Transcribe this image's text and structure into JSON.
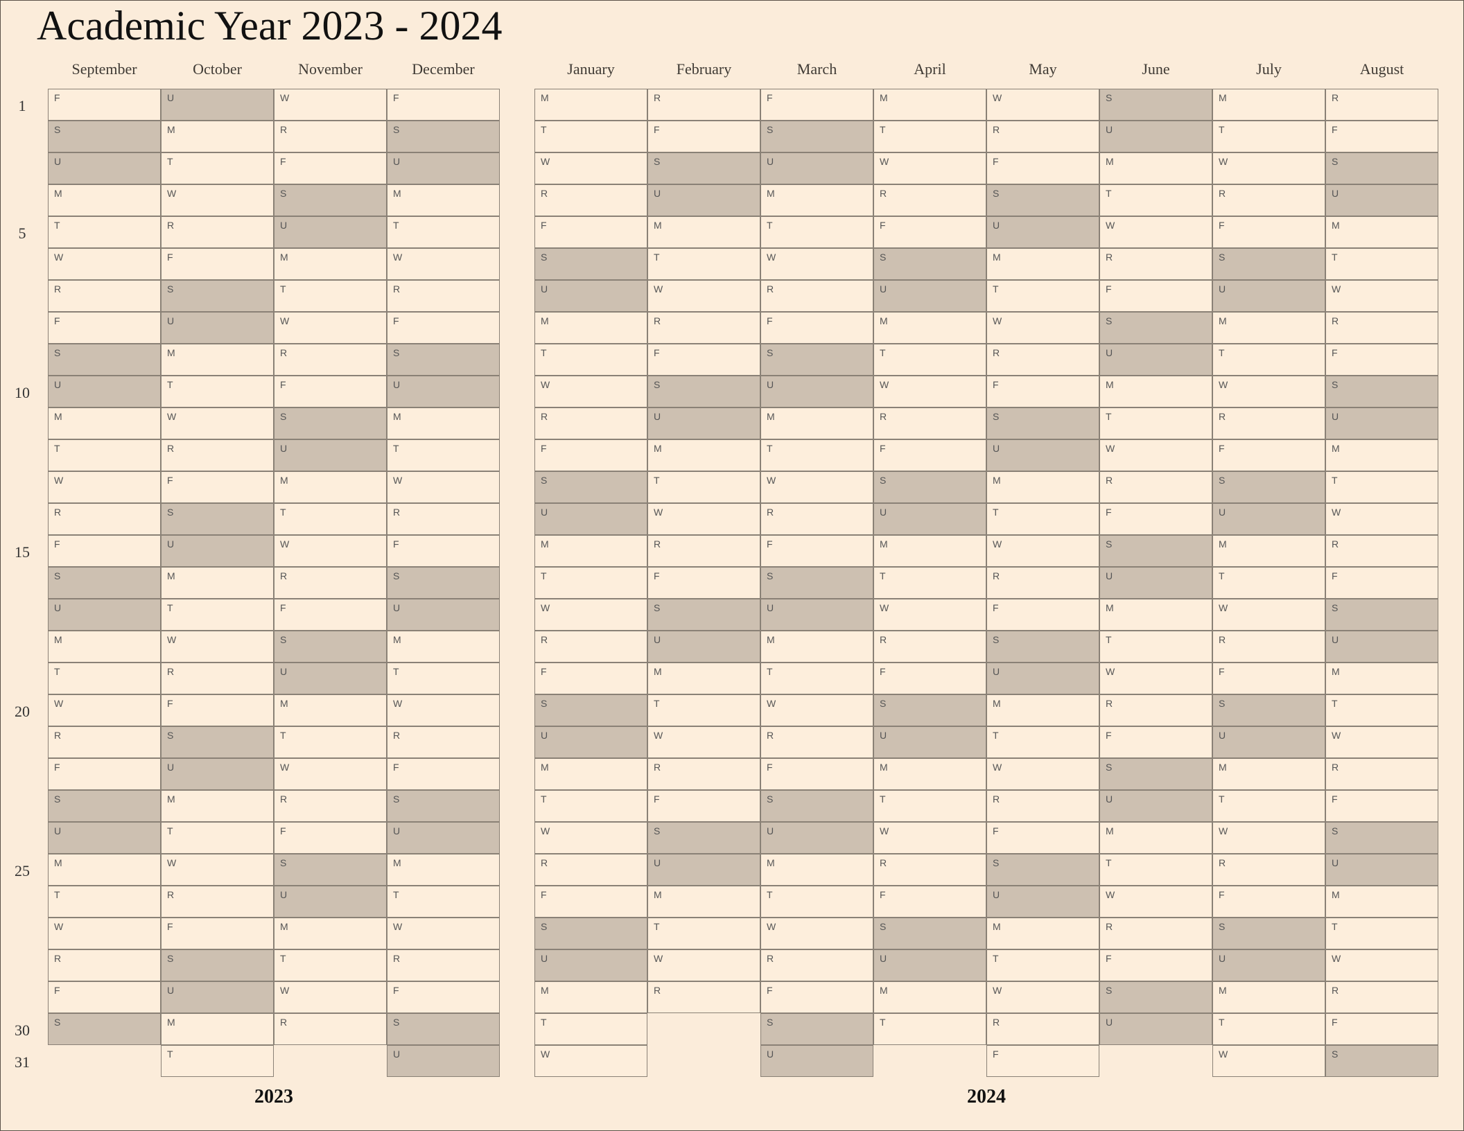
{
  "title": "Academic Year 2023 - 2024",
  "colors": {
    "background": "#fbecda",
    "weekday_cell": "#fdeedc",
    "weekend_cell": "#cdc0b1",
    "grid_line": "#8a8176"
  },
  "day_numbers": [
    "1",
    "5",
    "10",
    "15",
    "20",
    "25",
    "30",
    "31"
  ],
  "groups": [
    {
      "year": "2023",
      "months": [
        {
          "name": "September",
          "days": [
            "F",
            "S",
            "U",
            "M",
            "T",
            "W",
            "R",
            "F",
            "S",
            "U",
            "M",
            "T",
            "W",
            "R",
            "F",
            "S",
            "U",
            "M",
            "T",
            "W",
            "R",
            "F",
            "S",
            "U",
            "M",
            "T",
            "W",
            "R",
            "F",
            "S"
          ]
        },
        {
          "name": "October",
          "days": [
            "U",
            "M",
            "T",
            "W",
            "R",
            "F",
            "S",
            "U",
            "M",
            "T",
            "W",
            "R",
            "F",
            "S",
            "U",
            "M",
            "T",
            "W",
            "R",
            "F",
            "S",
            "U",
            "M",
            "T",
            "W",
            "R",
            "F",
            "S",
            "U",
            "M",
            "T"
          ]
        },
        {
          "name": "November",
          "days": [
            "W",
            "R",
            "F",
            "S",
            "U",
            "M",
            "T",
            "W",
            "R",
            "F",
            "S",
            "U",
            "M",
            "T",
            "W",
            "R",
            "F",
            "S",
            "U",
            "M",
            "T",
            "W",
            "R",
            "F",
            "S",
            "U",
            "M",
            "T",
            "W",
            "R"
          ]
        },
        {
          "name": "December",
          "days": [
            "F",
            "S",
            "U",
            "M",
            "T",
            "W",
            "R",
            "F",
            "S",
            "U",
            "M",
            "T",
            "W",
            "R",
            "F",
            "S",
            "U",
            "M",
            "T",
            "W",
            "R",
            "F",
            "S",
            "U",
            "M",
            "T",
            "W",
            "R",
            "F",
            "S",
            "U"
          ]
        }
      ]
    },
    {
      "year": "2024",
      "months": [
        {
          "name": "January",
          "days": [
            "M",
            "T",
            "W",
            "R",
            "F",
            "S",
            "U",
            "M",
            "T",
            "W",
            "R",
            "F",
            "S",
            "U",
            "M",
            "T",
            "W",
            "R",
            "F",
            "S",
            "U",
            "M",
            "T",
            "W",
            "R",
            "F",
            "S",
            "U",
            "M",
            "T",
            "W"
          ]
        },
        {
          "name": "February",
          "days": [
            "R",
            "F",
            "S",
            "U",
            "M",
            "T",
            "W",
            "R",
            "F",
            "S",
            "U",
            "M",
            "T",
            "W",
            "R",
            "F",
            "S",
            "U",
            "M",
            "T",
            "W",
            "R",
            "F",
            "S",
            "U",
            "M",
            "T",
            "W",
            "R"
          ]
        },
        {
          "name": "March",
          "days": [
            "F",
            "S",
            "U",
            "M",
            "T",
            "W",
            "R",
            "F",
            "S",
            "U",
            "M",
            "T",
            "W",
            "R",
            "F",
            "S",
            "U",
            "M",
            "T",
            "W",
            "R",
            "F",
            "S",
            "U",
            "M",
            "T",
            "W",
            "R",
            "F",
            "S",
            "U"
          ]
        },
        {
          "name": "April",
          "days": [
            "M",
            "T",
            "W",
            "R",
            "F",
            "S",
            "U",
            "M",
            "T",
            "W",
            "R",
            "F",
            "S",
            "U",
            "M",
            "T",
            "W",
            "R",
            "F",
            "S",
            "U",
            "M",
            "T",
            "W",
            "R",
            "F",
            "S",
            "U",
            "M",
            "T"
          ]
        },
        {
          "name": "May",
          "days": [
            "W",
            "R",
            "F",
            "S",
            "U",
            "M",
            "T",
            "W",
            "R",
            "F",
            "S",
            "U",
            "M",
            "T",
            "W",
            "R",
            "F",
            "S",
            "U",
            "M",
            "T",
            "W",
            "R",
            "F",
            "S",
            "U",
            "M",
            "T",
            "W",
            "R",
            "F"
          ]
        },
        {
          "name": "June",
          "days": [
            "S",
            "U",
            "M",
            "T",
            "W",
            "R",
            "F",
            "S",
            "U",
            "M",
            "T",
            "W",
            "R",
            "F",
            "S",
            "U",
            "M",
            "T",
            "W",
            "R",
            "F",
            "S",
            "U",
            "M",
            "T",
            "W",
            "R",
            "F",
            "S",
            "U"
          ]
        },
        {
          "name": "July",
          "days": [
            "M",
            "T",
            "W",
            "R",
            "F",
            "S",
            "U",
            "M",
            "T",
            "W",
            "R",
            "F",
            "S",
            "U",
            "M",
            "T",
            "W",
            "R",
            "F",
            "S",
            "U",
            "M",
            "T",
            "W",
            "R",
            "F",
            "S",
            "U",
            "M",
            "T",
            "W"
          ]
        },
        {
          "name": "August",
          "days": [
            "R",
            "F",
            "S",
            "U",
            "M",
            "T",
            "W",
            "R",
            "F",
            "S",
            "U",
            "M",
            "T",
            "W",
            "R",
            "F",
            "S",
            "U",
            "M",
            "T",
            "W",
            "R",
            "F",
            "S",
            "U",
            "M",
            "T",
            "W",
            "R",
            "F",
            "S"
          ]
        }
      ]
    }
  ]
}
